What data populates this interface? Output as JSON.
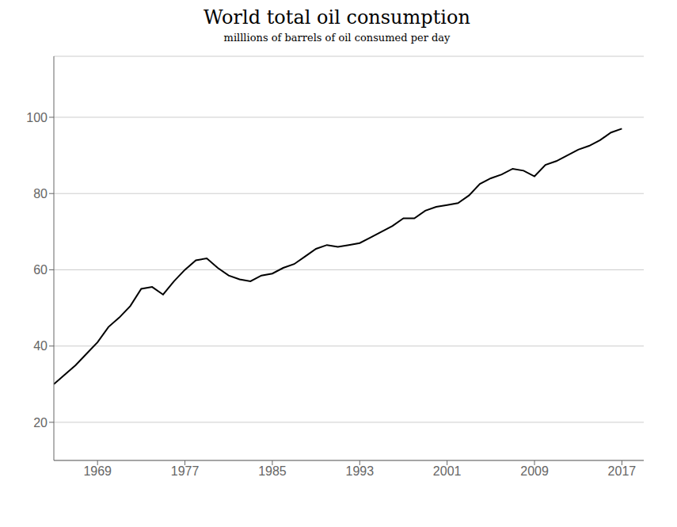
{
  "chart_data": {
    "type": "line",
    "title": "World total oil consumption",
    "subtitle": "milllions of barrels of oil consumed per day",
    "x": [
      1965,
      1966,
      1967,
      1968,
      1969,
      1970,
      1971,
      1972,
      1973,
      1974,
      1975,
      1976,
      1977,
      1978,
      1979,
      1980,
      1981,
      1982,
      1983,
      1984,
      1985,
      1986,
      1987,
      1988,
      1989,
      1990,
      1991,
      1992,
      1993,
      1994,
      1995,
      1996,
      1997,
      1998,
      1999,
      2000,
      2001,
      2002,
      2003,
      2004,
      2005,
      2006,
      2007,
      2008,
      2009,
      2010,
      2011,
      2012,
      2013,
      2014,
      2015,
      2016,
      2017
    ],
    "values": [
      30.0,
      32.5,
      35.0,
      38.0,
      41.0,
      45.0,
      47.5,
      50.5,
      55.0,
      55.5,
      53.5,
      57.0,
      60.0,
      62.5,
      63.0,
      60.5,
      58.5,
      57.5,
      57.0,
      58.5,
      59.0,
      60.5,
      61.5,
      63.5,
      65.5,
      66.5,
      66.0,
      66.5,
      67.0,
      68.5,
      70.0,
      71.5,
      73.5,
      73.5,
      75.5,
      76.5,
      77.0,
      77.5,
      79.5,
      82.5,
      84.0,
      85.0,
      86.5,
      86.0,
      84.5,
      87.5,
      88.5,
      90.0,
      91.5,
      92.5,
      94.0,
      96.0,
      97.0
    ],
    "color": "#000000",
    "xlim": [
      1965,
      2019
    ],
    "ylim": [
      10,
      116
    ],
    "xticks": [
      1969,
      1977,
      1985,
      1993,
      2001,
      2009,
      2017
    ],
    "yticks": [
      20,
      40,
      60,
      80,
      100
    ],
    "grid": true
  }
}
